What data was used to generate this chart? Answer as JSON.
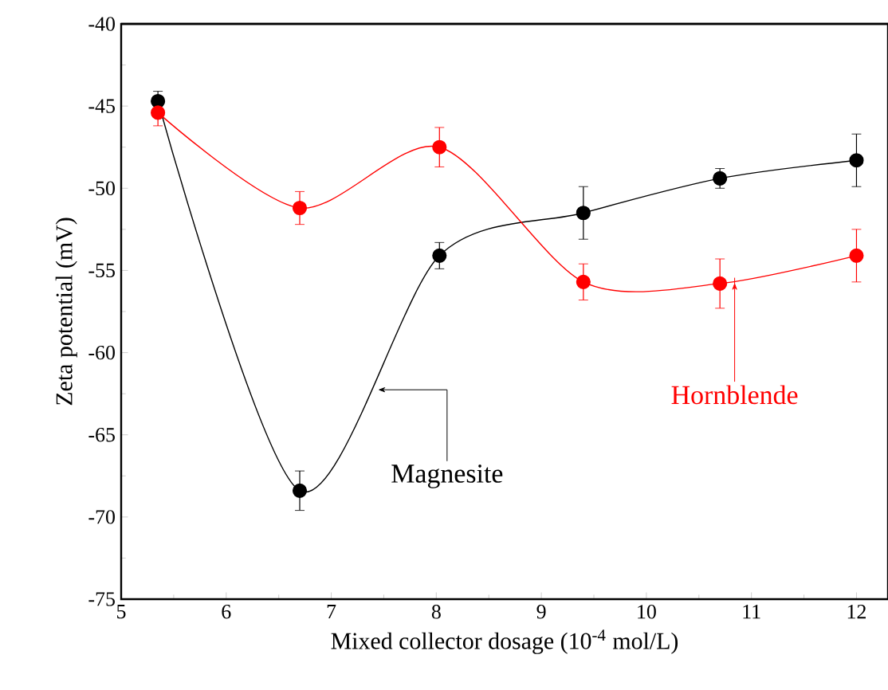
{
  "chart_data": {
    "type": "line",
    "xlabel": "Mixed collector dosage (10$^{-4}$ mol/L)",
    "ylabel": "Zeta potential (mV)",
    "xlim": [
      5,
      12.3
    ],
    "xticks": [
      5,
      6,
      7,
      8,
      9,
      10,
      11,
      12
    ],
    "ylim": [
      -75,
      -40
    ],
    "yticks": [
      -75,
      -70,
      -65,
      -60,
      -55,
      -50,
      -45,
      -40
    ],
    "x": [
      5.35,
      6.7,
      8.03,
      9.4,
      10.7,
      12.0
    ],
    "marker": "circle",
    "line_style": "solid",
    "grid": false,
    "legend": false,
    "series": [
      {
        "name": "Magnesite",
        "color": "#000000",
        "values": [
          -44.7,
          -68.4,
          -54.1,
          -51.5,
          -49.4,
          -48.3
        ],
        "errors": [
          0.6,
          1.2,
          0.8,
          1.6,
          0.6,
          1.6
        ]
      },
      {
        "name": "Hornblende",
        "color": "#ff0000",
        "values": [
          -45.4,
          -51.2,
          -47.5,
          -55.7,
          -55.8,
          -54.1
        ],
        "errors": [
          0.8,
          1.0,
          1.2,
          1.1,
          1.5,
          1.6
        ]
      }
    ]
  }
}
